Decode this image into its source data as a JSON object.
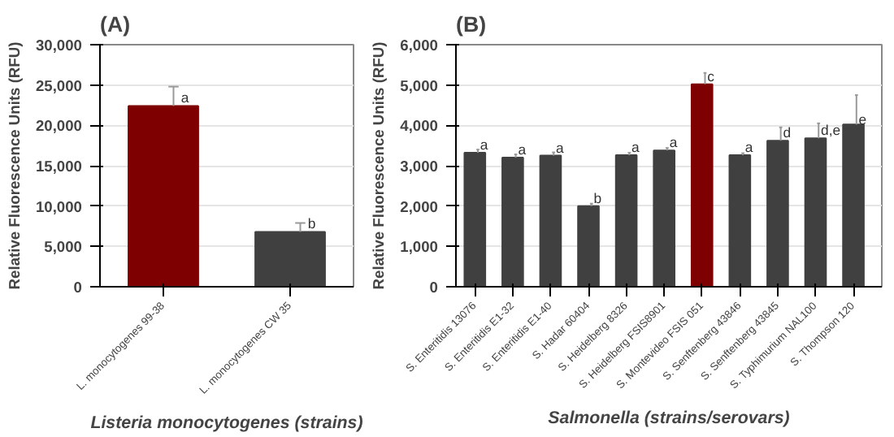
{
  "chart_data": [
    {
      "type": "bar",
      "title": "(A)",
      "xlabel": "Listeria monocytogenes (strains)",
      "ylabel": "Relative Fluorescence Units (RFU)",
      "categories": [
        "L. monocytogenes 99-38",
        "L. monocytogenes CW 35"
      ],
      "values": [
        22400,
        6800
      ],
      "colors": [
        "#7f0000",
        "#404040"
      ],
      "errors": [
        [
          22400,
          24800
        ],
        [
          6800,
          7900
        ]
      ],
      "ylim": [
        0,
        30000
      ],
      "yticks": [
        {
          "value": 0,
          "label": "0"
        },
        {
          "value": 5000,
          "label": "5,000"
        },
        {
          "value": 10000,
          "label": "10,000"
        },
        {
          "value": 15000,
          "label": "15,000"
        },
        {
          "value": 20000,
          "label": "20,000"
        },
        {
          "value": 25000,
          "label": "25,000"
        },
        {
          "value": 30000,
          "label": "30,000"
        }
      ],
      "grid": "y",
      "annotations": [
        {
          "text": "a",
          "x": "L. monocytogenes 99-38",
          "y": 22400
        },
        {
          "text": "b",
          "x": "L. monocytogenes CW 35",
          "y": 6800
        }
      ]
    },
    {
      "type": "bar",
      "title": "(B)",
      "xlabel": "Salmonella (strains/serovars)",
      "ylabel": "Relative Fluorescence Units (RFU)",
      "categories": [
        "S. Enteritidis 13076",
        "S. Enteritidis E1-32",
        "S. Enteritidis E1-40",
        "S. Hadar 60404",
        "S. Heidelberg 8326",
        "S. Heidelberg FSIS8901",
        "S. Montevideo FSIS 051",
        "S. Senftenberg 43846",
        "S. Senftenberg 43845",
        "S. Typhimurium NAL100",
        "S. Thompson 120"
      ],
      "values": [
        3320,
        3200,
        3250,
        2000,
        3260,
        3380,
        5020,
        3260,
        3620,
        3680,
        4020
      ],
      "colors": [
        "#404040",
        "#404040",
        "#404040",
        "#404040",
        "#404040",
        "#404040",
        "#7f0000",
        "#404040",
        "#404040",
        "#404040",
        "#404040"
      ],
      "errors": [
        [
          3320,
          3400
        ],
        [
          3200,
          3280
        ],
        [
          3250,
          3330
        ],
        [
          2000,
          2060
        ],
        [
          3260,
          3320
        ],
        [
          3380,
          3440
        ],
        [
          5020,
          5300
        ],
        [
          3260,
          3310
        ],
        [
          3620,
          3950
        ],
        [
          3680,
          4050
        ],
        [
          4020,
          4750
        ]
      ],
      "ylim": [
        0,
        6000
      ],
      "yticks": [
        {
          "value": 0,
          "label": "0"
        },
        {
          "value": 1000,
          "label": "1,000"
        },
        {
          "value": 2000,
          "label": "2,000"
        },
        {
          "value": 3000,
          "label": "3,000"
        },
        {
          "value": 4000,
          "label": "4,000"
        },
        {
          "value": 5000,
          "label": "5,000"
        },
        {
          "value": 6000,
          "label": "6,000"
        }
      ],
      "grid": "y",
      "annotations": [
        {
          "text": "a",
          "x": "S. Enteritidis 13076",
          "y": 3320
        },
        {
          "text": "a",
          "x": "S. Enteritidis E1-32",
          "y": 3200
        },
        {
          "text": "a",
          "x": "S. Enteritidis E1-40",
          "y": 3250
        },
        {
          "text": "b",
          "x": "S. Hadar 60404",
          "y": 2000
        },
        {
          "text": "a",
          "x": "S. Heidelberg 8326",
          "y": 3260
        },
        {
          "text": "a",
          "x": "S. Heidelberg FSIS8901",
          "y": 3380
        },
        {
          "text": "c",
          "x": "S. Montevideo FSIS 051",
          "y": 5020
        },
        {
          "text": "a",
          "x": "S. Senftenberg 43846",
          "y": 3260
        },
        {
          "text": "d",
          "x": "S. Senftenberg 43845",
          "y": 3620
        },
        {
          "text": "d,e",
          "x": "S. Typhimurium NAL100",
          "y": 3680
        },
        {
          "text": "e",
          "x": "S. Thompson 120",
          "y": 4020
        }
      ]
    }
  ]
}
